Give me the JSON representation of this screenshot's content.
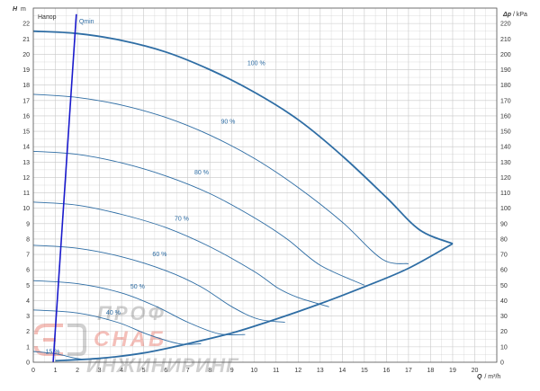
{
  "chart_data": {
    "type": "line",
    "title": "Напор",
    "ylabel": {
      "symbol": "H",
      "unit": "m"
    },
    "y2label": {
      "symbol": "Δp",
      "unit": "/ kPa"
    },
    "xlabel": {
      "symbol": "Q",
      "unit": "/ m³/h"
    },
    "xlim": [
      0,
      21
    ],
    "ylim": [
      0,
      23
    ],
    "y2lim": [
      0,
      230
    ],
    "x_ticks": [
      "0",
      "1",
      "2",
      "3",
      "4",
      "5",
      "6",
      "7",
      "8",
      "9",
      "10",
      "11",
      "12",
      "13",
      "14",
      "15",
      "16",
      "17",
      "18",
      "19",
      "20"
    ],
    "y_ticks": [
      "0",
      "1",
      "2",
      "3",
      "4",
      "5",
      "6",
      "7",
      "8",
      "9",
      "10",
      "11",
      "12",
      "13",
      "14",
      "15",
      "16",
      "17",
      "18",
      "19",
      "20",
      "21",
      "22"
    ],
    "y2_ticks": [
      "0",
      "10",
      "20",
      "30",
      "40",
      "50",
      "60",
      "70",
      "80",
      "90",
      "100",
      "110",
      "120",
      "130",
      "140",
      "150",
      "160",
      "170",
      "180",
      "190",
      "200",
      "210",
      "220"
    ],
    "grid": true,
    "colors": {
      "curves": "#2e6da4",
      "qmin": "#1a1acc",
      "grid": "#c8c8c8",
      "frame": "#555555"
    },
    "speed_curves": [
      {
        "label": "100 %",
        "label_at": [
          9.7,
          19.3
        ],
        "points": [
          [
            0,
            21.5
          ],
          [
            2,
            21.35
          ],
          [
            4,
            20.9
          ],
          [
            6,
            20.15
          ],
          [
            8,
            19.0
          ],
          [
            10,
            17.55
          ],
          [
            12,
            15.75
          ],
          [
            14,
            13.4
          ],
          [
            16,
            10.7
          ],
          [
            17.5,
            8.6
          ],
          [
            19,
            7.7
          ]
        ]
      },
      {
        "label": "90 %",
        "label_at": [
          8.5,
          15.5
        ],
        "points": [
          [
            0,
            17.4
          ],
          [
            2,
            17.2
          ],
          [
            4,
            16.7
          ],
          [
            6,
            15.9
          ],
          [
            8,
            14.75
          ],
          [
            10,
            13.25
          ],
          [
            12,
            11.35
          ],
          [
            14,
            9.1
          ],
          [
            15.8,
            6.7
          ],
          [
            17,
            6.4
          ]
        ]
      },
      {
        "label": "80 %",
        "label_at": [
          7.3,
          12.2
        ],
        "points": [
          [
            0,
            13.7
          ],
          [
            2,
            13.5
          ],
          [
            4,
            12.95
          ],
          [
            6,
            12.1
          ],
          [
            8,
            10.95
          ],
          [
            10,
            9.4
          ],
          [
            11.5,
            8.0
          ],
          [
            13,
            6.3
          ],
          [
            15,
            5.0
          ]
        ]
      },
      {
        "label": "70 %",
        "label_at": [
          6.4,
          9.2
        ],
        "points": [
          [
            0,
            10.4
          ],
          [
            2,
            10.2
          ],
          [
            4,
            9.6
          ],
          [
            6,
            8.75
          ],
          [
            8,
            7.5
          ],
          [
            10,
            5.9
          ],
          [
            11.1,
            4.8
          ],
          [
            12,
            4.2
          ],
          [
            13.4,
            3.6
          ]
        ]
      },
      {
        "label": "60 %",
        "label_at": [
          5.4,
          6.9
        ],
        "points": [
          [
            0,
            7.6
          ],
          [
            2,
            7.4
          ],
          [
            4,
            6.85
          ],
          [
            6,
            5.95
          ],
          [
            7.6,
            4.9
          ],
          [
            9,
            3.6
          ],
          [
            10.2,
            2.8
          ],
          [
            11.4,
            2.6
          ]
        ]
      },
      {
        "label": "50 %",
        "label_at": [
          4.4,
          4.8
        ],
        "points": [
          [
            0,
            5.3
          ],
          [
            2,
            5.1
          ],
          [
            4,
            4.5
          ],
          [
            5.6,
            3.6
          ],
          [
            7,
            2.6
          ],
          [
            8.4,
            1.85
          ],
          [
            9.6,
            1.8
          ]
        ]
      },
      {
        "label": "40 %",
        "label_at": [
          3.3,
          3.1
        ],
        "points": [
          [
            0,
            3.4
          ],
          [
            2,
            3.2
          ],
          [
            3.8,
            2.6
          ],
          [
            5.2,
            1.8
          ],
          [
            6.6,
            1.2
          ],
          [
            7.6,
            1.2
          ]
        ]
      },
      {
        "label": "15 %",
        "label_at": [
          0.55,
          0.55
        ],
        "points": [
          [
            0,
            0.7
          ],
          [
            1,
            0.55
          ],
          [
            1.8,
            0.3
          ],
          [
            2.2,
            0.2
          ]
        ]
      }
    ],
    "max_curve": {
      "points": [
        [
          1,
          0.1
        ],
        [
          3,
          0.25
        ],
        [
          5,
          0.6
        ],
        [
          7,
          1.2
        ],
        [
          9,
          1.9
        ],
        [
          11,
          2.8
        ],
        [
          13,
          3.8
        ],
        [
          15,
          4.9
        ],
        [
          17,
          6.1
        ],
        [
          19,
          7.7
        ]
      ]
    },
    "qmin_line": {
      "label": "Qmin",
      "points": [
        [
          0.9,
          0
        ],
        [
          1.95,
          22.6
        ]
      ]
    },
    "watermark": {
      "line1": "ПРОФ",
      "line2": "СНАБ",
      "line3": "ИНЖИНИРИНГ"
    }
  }
}
